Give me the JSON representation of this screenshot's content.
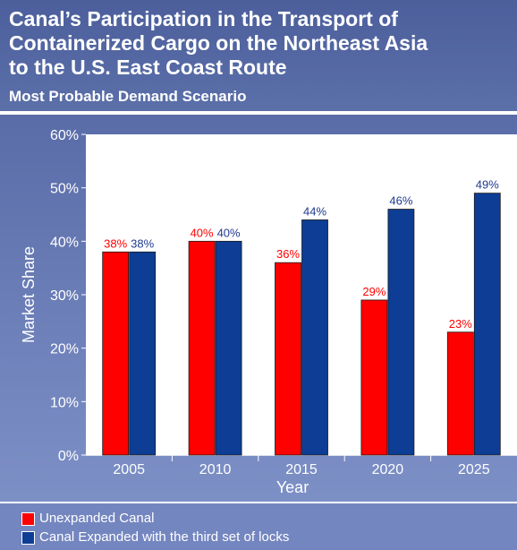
{
  "title_lines": [
    "Canal’s Participation in the Transport of",
    "Containerized Cargo on the Northeast Asia",
    "to the U.S. East Coast Route"
  ],
  "subtitle": "Most Probable Demand Scenario",
  "chart_data": {
    "type": "bar",
    "categories": [
      "2005",
      "2010",
      "2015",
      "2020",
      "2025"
    ],
    "series": [
      {
        "name": "Unexpanded Canal",
        "values": [
          38,
          40,
          36,
          29,
          23
        ],
        "labels": [
          "38%",
          "40%",
          "36%",
          "29%",
          "23%"
        ],
        "color": "#ff0000",
        "label_color": "#ff0000"
      },
      {
        "name": "Canal Expanded with the third set of locks",
        "values": [
          38,
          40,
          44,
          46,
          49
        ],
        "labels": [
          "38%",
          "40%",
          "44%",
          "46%",
          "49%"
        ],
        "color": "#0d3d94",
        "label_color": "#1f3a8f"
      }
    ],
    "xlabel": "Year",
    "ylabel": "Market Share",
    "ylim": [
      0,
      60
    ],
    "yticks": [
      0,
      10,
      20,
      30,
      40,
      50,
      60
    ],
    "ytick_labels": [
      "0%",
      "10%",
      "20%",
      "30%",
      "40%",
      "50%",
      "60%"
    ],
    "grid": false,
    "legend_position": "bottom"
  },
  "colors": {
    "background": "#5f73ae",
    "plot_area": "#ffffff",
    "text": "#ffffff"
  }
}
